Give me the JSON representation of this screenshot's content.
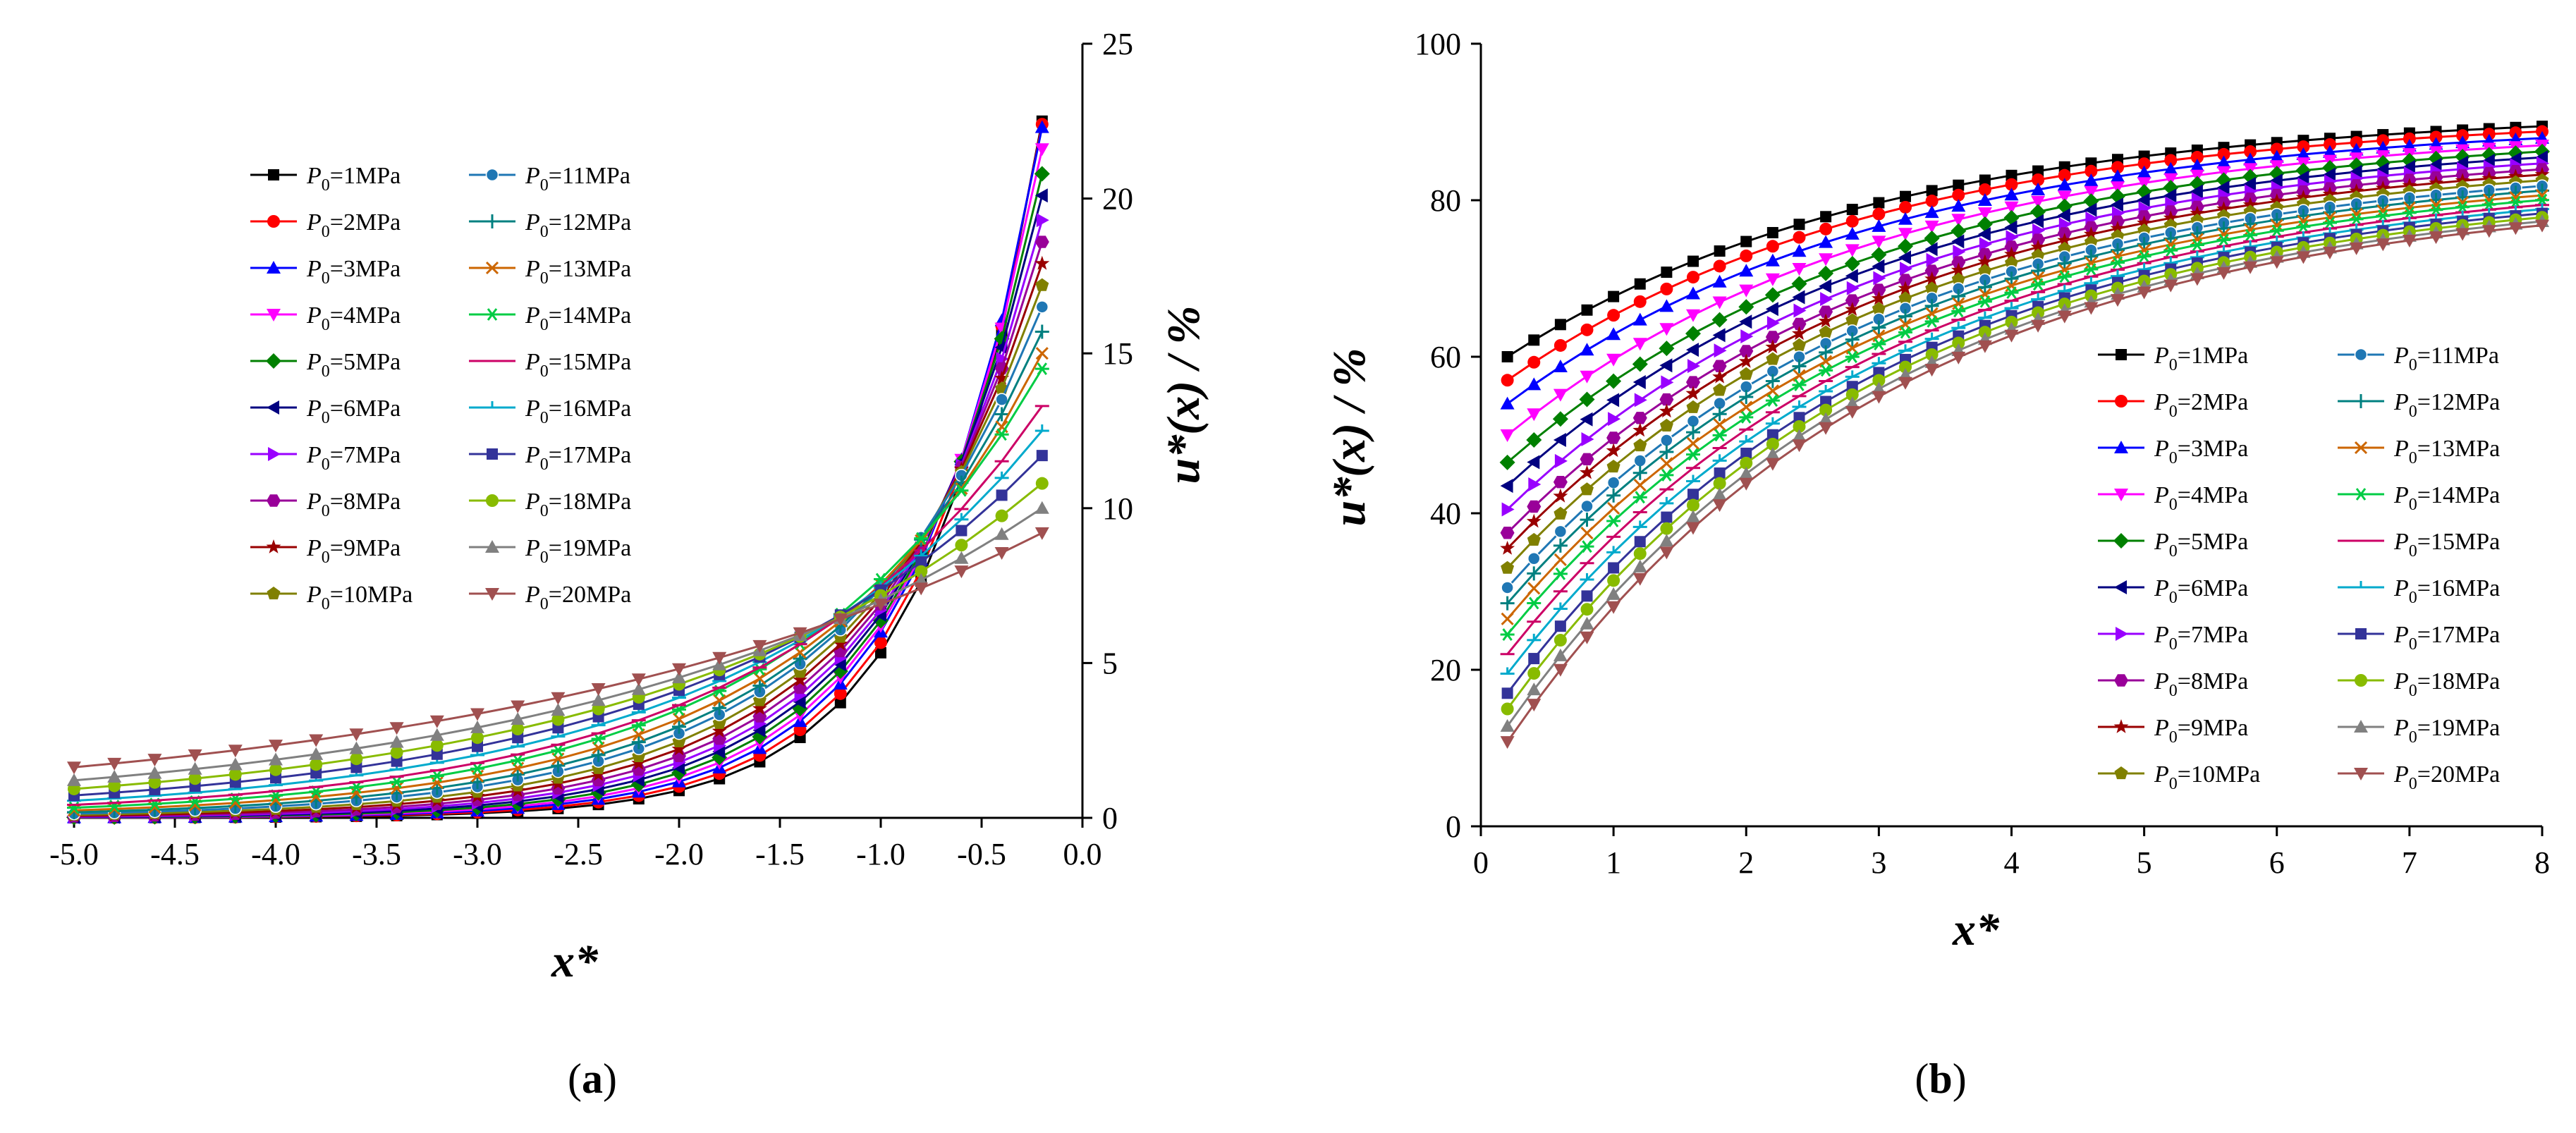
{
  "figure": {
    "panel_labels": [
      {
        "open": "(",
        "letter": "a",
        "close": ")"
      },
      {
        "open": "(",
        "letter": "b",
        "close": ")"
      }
    ]
  },
  "legend": {
    "entries": [
      {
        "symbol": "P",
        "subscript": "0",
        "value": "=1MPa",
        "color": "#000000",
        "marker": "square"
      },
      {
        "symbol": "P",
        "subscript": "0",
        "value": "=2MPa",
        "color": "#ff0000",
        "marker": "circle"
      },
      {
        "symbol": "P",
        "subscript": "0",
        "value": "=3MPa",
        "color": "#0000ff",
        "marker": "triangle-up"
      },
      {
        "symbol": "P",
        "subscript": "0",
        "value": "=4MPa",
        "color": "#ff00ff",
        "marker": "triangle-down"
      },
      {
        "symbol": "P",
        "subscript": "0",
        "value": "=5MPa",
        "color": "#008000",
        "marker": "diamond"
      },
      {
        "symbol": "P",
        "subscript": "0",
        "value": "=6MPa",
        "color": "#000080",
        "marker": "triangle-left"
      },
      {
        "symbol": "P",
        "subscript": "0",
        "value": "=7MPa",
        "color": "#9900ff",
        "marker": "triangle-right"
      },
      {
        "symbol": "P",
        "subscript": "0",
        "value": "=8MPa",
        "color": "#990099",
        "marker": "hexagon"
      },
      {
        "symbol": "P",
        "subscript": "0",
        "value": "=9MPa",
        "color": "#990000",
        "marker": "star"
      },
      {
        "symbol": "P",
        "subscript": "0",
        "value": "=10MPa",
        "color": "#808000",
        "marker": "pentagon"
      },
      {
        "symbol": "P",
        "subscript": "0",
        "value": "=11MPa",
        "color": "#1f77b4",
        "marker": "circle-half"
      },
      {
        "symbol": "P",
        "subscript": "0",
        "value": "=12MPa",
        "color": "#008080",
        "marker": "plus"
      },
      {
        "symbol": "P",
        "subscript": "0",
        "value": "=13MPa",
        "color": "#cc6600",
        "marker": "cross"
      },
      {
        "symbol": "P",
        "subscript": "0",
        "value": "=14MPa",
        "color": "#00cc44",
        "marker": "asterisk"
      },
      {
        "symbol": "P",
        "subscript": "0",
        "value": "=15MPa",
        "color": "#cc0066",
        "marker": "dash"
      },
      {
        "symbol": "P",
        "subscript": "0",
        "value": "=16MPa",
        "color": "#00aacc",
        "marker": "tick"
      },
      {
        "symbol": "P",
        "subscript": "0",
        "value": "=17MPa",
        "color": "#333399",
        "marker": "square"
      },
      {
        "symbol": "P",
        "subscript": "0",
        "value": "=18MPa",
        "color": "#88bb00",
        "marker": "circle"
      },
      {
        "symbol": "P",
        "subscript": "0",
        "value": "=19MPa",
        "color": "#808080",
        "marker": "triangle-up"
      },
      {
        "symbol": "P",
        "subscript": "0",
        "value": "=20MPa",
        "color": "#a05050",
        "marker": "triangle-down"
      }
    ]
  },
  "chart_data": [
    {
      "id": "a",
      "type": "line",
      "xlabel": "x*",
      "ylabel": "u*(x) / %",
      "xlim": [
        -5.0,
        0.0
      ],
      "ylim": [
        0,
        25
      ],
      "xticks": [
        "-5.0",
        "-4.5",
        "-4.0",
        "-3.5",
        "-3.0",
        "-2.5",
        "-2.0",
        "-1.5",
        "-1.0",
        "-0.5",
        "0.0"
      ],
      "xtick_values": [
        -5.0,
        -4.5,
        -4.0,
        -3.5,
        -3.0,
        -2.5,
        -2.0,
        -1.5,
        -1.0,
        -0.5,
        0.0
      ],
      "yticks": [
        "0",
        "5",
        "10",
        "15",
        "20",
        "25"
      ],
      "ytick_values": [
        0,
        5,
        10,
        15,
        20,
        25
      ],
      "y_axis_side": "right",
      "legend_position": "top-left",
      "x": [
        -5.0,
        -4.8,
        -4.6,
        -4.4,
        -4.2,
        -4.0,
        -3.8,
        -3.6,
        -3.4,
        -3.2,
        -3.0,
        -2.8,
        -2.6,
        -2.4,
        -2.2,
        -2.0,
        -1.8,
        -1.6,
        -1.4,
        -1.2,
        -1.0,
        -0.8,
        -0.6,
        -0.4,
        -0.2
      ],
      "series_params": [
        {
          "name": "P0=1MPa",
          "end": 22.5,
          "k": 1.8
        },
        {
          "name": "P0=2MPa",
          "end": 22.4,
          "k": 1.72
        },
        {
          "name": "P0=3MPa",
          "end": 22.3,
          "k": 1.64
        },
        {
          "name": "P0=4MPa",
          "end": 21.6,
          "k": 1.56
        },
        {
          "name": "P0=5MPa",
          "end": 20.8,
          "k": 1.48
        },
        {
          "name": "P0=6MPa",
          "end": 20.1,
          "k": 1.4
        },
        {
          "name": "P0=7MPa",
          "end": 19.3,
          "k": 1.32
        },
        {
          "name": "P0=8MPa",
          "end": 18.6,
          "k": 1.24
        },
        {
          "name": "P0=9MPa",
          "end": 17.9,
          "k": 1.16
        },
        {
          "name": "P0=10MPa",
          "end": 17.2,
          "k": 1.08
        },
        {
          "name": "P0=11MPa",
          "end": 16.5,
          "k": 1.0
        },
        {
          "name": "P0=12MPa",
          "end": 15.7,
          "k": 0.93
        },
        {
          "name": "P0=13MPa",
          "end": 15.0,
          "k": 0.86
        },
        {
          "name": "P0=14MPa",
          "end": 14.5,
          "k": 0.79
        },
        {
          "name": "P0=15MPa",
          "end": 13.3,
          "k": 0.72
        },
        {
          "name": "P0=16MPa",
          "end": 12.5,
          "k": 0.65
        },
        {
          "name": "P0=17MPa",
          "end": 11.7,
          "k": 0.58
        },
        {
          "name": "P0=18MPa",
          "end": 10.8,
          "k": 0.51
        },
        {
          "name": "P0=19MPa",
          "end": 10.0,
          "k": 0.44
        },
        {
          "name": "P0=20MPa",
          "end": 9.2,
          "k": 0.36
        }
      ],
      "formula": "y = end * exp(k * (x + 0.2))"
    },
    {
      "id": "b",
      "type": "line",
      "xlabel": "x*",
      "ylabel": "u*(x) / %",
      "xlim": [
        0,
        8
      ],
      "ylim": [
        0,
        100
      ],
      "xticks": [
        "0",
        "1",
        "2",
        "3",
        "4",
        "5",
        "6",
        "7",
        "8"
      ],
      "xtick_values": [
        0,
        1,
        2,
        3,
        4,
        5,
        6,
        7,
        8
      ],
      "yticks": [
        "0",
        "20",
        "40",
        "60",
        "80",
        "100"
      ],
      "ytick_values": [
        0,
        20,
        40,
        60,
        80,
        100
      ],
      "y_axis_side": "left",
      "legend_position": "bottom-right",
      "x": [
        0.2,
        0.4,
        0.6,
        0.8,
        1.0,
        1.2,
        1.4,
        1.6,
        1.8,
        2.0,
        2.2,
        2.4,
        2.6,
        2.8,
        3.0,
        3.2,
        3.4,
        3.6,
        3.8,
        4.0,
        4.2,
        4.4,
        4.6,
        4.8,
        5.0,
        5.2,
        5.4,
        5.6,
        5.8,
        6.0,
        6.2,
        6.4,
        6.6,
        6.8,
        7.0,
        7.2,
        7.4,
        7.6,
        7.8,
        8.0
      ],
      "series_params": [
        {
          "name": "P0=1MPa",
          "start": 60.0,
          "end": 91.5
        },
        {
          "name": "P0=2MPa",
          "start": 57.0,
          "end": 91.0
        },
        {
          "name": "P0=3MPa",
          "start": 54.0,
          "end": 90.3
        },
        {
          "name": "P0=4MPa",
          "start": 50.0,
          "end": 89.6
        },
        {
          "name": "P0=5MPa",
          "start": 46.5,
          "end": 89.0
        },
        {
          "name": "P0=6MPa",
          "start": 43.5,
          "end": 88.4
        },
        {
          "name": "P0=7MPa",
          "start": 40.5,
          "end": 87.8
        },
        {
          "name": "P0=8MPa",
          "start": 37.5,
          "end": 87.2
        },
        {
          "name": "P0=9MPa",
          "start": 35.5,
          "end": 86.6
        },
        {
          "name": "P0=10MPa",
          "start": 33.0,
          "end": 86.0
        },
        {
          "name": "P0=11MPa",
          "start": 30.5,
          "end": 85.4
        },
        {
          "name": "P0=12MPa",
          "start": 28.5,
          "end": 84.9
        },
        {
          "name": "P0=13MPa",
          "start": 26.5,
          "end": 84.4
        },
        {
          "name": "P0=14MPa",
          "start": 24.5,
          "end": 83.9
        },
        {
          "name": "P0=15MPa",
          "start": 22.0,
          "end": 83.4
        },
        {
          "name": "P0=16MPa",
          "start": 19.5,
          "end": 83.0
        },
        {
          "name": "P0=17MPa",
          "start": 17.0,
          "end": 82.6
        },
        {
          "name": "P0=18MPa",
          "start": 15.0,
          "end": 82.2
        },
        {
          "name": "P0=19MPa",
          "start": 12.8,
          "end": 81.8
        },
        {
          "name": "P0=20MPa",
          "start": 10.8,
          "end": 81.4
        }
      ],
      "formula": "y = end - (end - start) * exp(-0.35 * (x - 0.2))"
    }
  ]
}
